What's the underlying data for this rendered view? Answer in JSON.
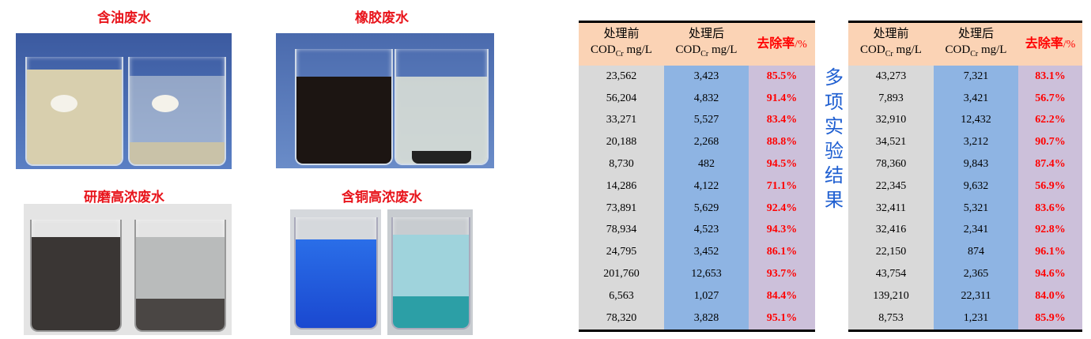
{
  "photos": [
    {
      "caption": "含油废水"
    },
    {
      "caption": "橡胶废水"
    },
    {
      "caption": "研磨高浓废水"
    },
    {
      "caption": "含铜高浓废水"
    }
  ],
  "side_title": "多项实验结果",
  "table_headers": {
    "before_line1": "处理前",
    "before_line2": "COD",
    "after_line1": "处理后",
    "after_line2": "COD",
    "sub": "Cr",
    "unit": " mg/L",
    "rate": "去除率",
    "rate_unit": "/%"
  },
  "colors": {
    "caption": "#e8141b",
    "side_title": "#1f5fd1",
    "header_bg": "#fbd3b5",
    "col_before": "#d9d9d9",
    "col_after": "#8eb4e3",
    "col_rate": "#ccc0da",
    "rate_text": "#ff0000"
  },
  "tables": [
    {
      "rows": [
        [
          "23,562",
          "3,423",
          "85.5%"
        ],
        [
          "56,204",
          "4,832",
          "91.4%"
        ],
        [
          "33,271",
          "5,527",
          "83.4%"
        ],
        [
          "20,188",
          "2,268",
          "88.8%"
        ],
        [
          "8,730",
          "482",
          "94.5%"
        ],
        [
          "14,286",
          "4,122",
          "71.1%"
        ],
        [
          "73,891",
          "5,629",
          "92.4%"
        ],
        [
          "78,934",
          "4,523",
          "94.3%"
        ],
        [
          "24,795",
          "3,452",
          "86.1%"
        ],
        [
          "201,760",
          "12,653",
          "93.7%"
        ],
        [
          "6,563",
          "1,027",
          "84.4%"
        ],
        [
          "78,320",
          "3,828",
          "95.1%"
        ]
      ]
    },
    {
      "rows": [
        [
          "43,273",
          "7,321",
          "83.1%"
        ],
        [
          "7,893",
          "3,421",
          "56.7%"
        ],
        [
          "32,910",
          "12,432",
          "62.2%"
        ],
        [
          "34,521",
          "3,212",
          "90.7%"
        ],
        [
          "78,360",
          "9,843",
          "87.4%"
        ],
        [
          "22,345",
          "9,632",
          "56.9%"
        ],
        [
          "32,411",
          "5,321",
          "83.6%"
        ],
        [
          "32,416",
          "2,341",
          "92.8%"
        ],
        [
          "22,150",
          "874",
          "96.1%"
        ],
        [
          "43,754",
          "2,365",
          "94.6%"
        ],
        [
          "139,210",
          "22,311",
          "84.0%"
        ],
        [
          "8,753",
          "1,231",
          "85.9%"
        ]
      ]
    }
  ]
}
